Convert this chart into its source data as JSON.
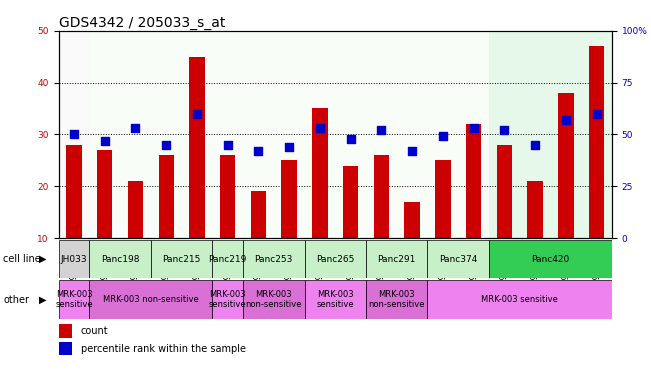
{
  "title": "GDS4342 / 205033_s_at",
  "samples": [
    "GSM924986",
    "GSM924992",
    "GSM924987",
    "GSM924995",
    "GSM924985",
    "GSM924991",
    "GSM924989",
    "GSM924990",
    "GSM924979",
    "GSM924982",
    "GSM924978",
    "GSM924994",
    "GSM924980",
    "GSM924983",
    "GSM924981",
    "GSM924984",
    "GSM924988",
    "GSM924993"
  ],
  "counts": [
    28,
    27,
    21,
    26,
    45,
    26,
    19,
    25,
    35,
    24,
    26,
    17,
    25,
    32,
    28,
    21,
    38,
    47
  ],
  "percentiles": [
    50,
    47,
    53,
    45,
    60,
    45,
    42,
    44,
    53,
    48,
    52,
    42,
    49,
    53,
    52,
    45,
    57,
    60
  ],
  "ylim_left": [
    10,
    50
  ],
  "ylim_right": [
    0,
    100
  ],
  "yticks_left": [
    10,
    20,
    30,
    40,
    50
  ],
  "yticks_right": [
    0,
    25,
    50,
    75,
    100
  ],
  "ytick_labels_right": [
    "0",
    "25",
    "50",
    "75",
    "100%"
  ],
  "bar_color": "#CC0000",
  "dot_color": "#0000CC",
  "bar_width": 0.5,
  "dot_size": 30,
  "title_fontsize": 10,
  "tick_fontsize": 6.5,
  "left_axis_color": "#CC0000",
  "right_axis_color": "#0000CC",
  "cell_spans": [
    [
      0,
      1,
      "JH033",
      "#d3d3d3"
    ],
    [
      1,
      3,
      "Panc198",
      "#c8f0c8"
    ],
    [
      3,
      5,
      "Panc215",
      "#c8f0c8"
    ],
    [
      5,
      6,
      "Panc219",
      "#c8f0c8"
    ],
    [
      6,
      8,
      "Panc253",
      "#c8f0c8"
    ],
    [
      8,
      10,
      "Panc265",
      "#c8f0c8"
    ],
    [
      10,
      12,
      "Panc291",
      "#c8f0c8"
    ],
    [
      12,
      14,
      "Panc374",
      "#c8f0c8"
    ],
    [
      14,
      18,
      "Panc420",
      "#33cc55"
    ]
  ],
  "other_spans": [
    [
      0,
      1,
      "MRK-003\nsensitive",
      "#ee82ee"
    ],
    [
      1,
      5,
      "MRK-003 non-sensitive",
      "#da70d6"
    ],
    [
      5,
      6,
      "MRK-003\nsensitive",
      "#ee82ee"
    ],
    [
      6,
      8,
      "MRK-003\nnon-sensitive",
      "#da70d6"
    ],
    [
      8,
      10,
      "MRK-003\nsensitive",
      "#ee82ee"
    ],
    [
      10,
      12,
      "MRK-003\nnon-sensitive",
      "#da70d6"
    ],
    [
      12,
      18,
      "MRK-003 sensitive",
      "#ee82ee"
    ]
  ],
  "col_bg_colors": [
    "#d3d3d3",
    "#c8f0c8",
    "#c8f0c8",
    "#c8f0c8",
    "#c8f0c8",
    "#c8f0c8",
    "#c8f0c8",
    "#c8f0c8",
    "#c8f0c8",
    "#c8f0c8",
    "#c8f0c8",
    "#c8f0c8",
    "#c8f0c8",
    "#c8f0c8",
    "#33cc55",
    "#33cc55",
    "#33cc55",
    "#33cc55"
  ]
}
